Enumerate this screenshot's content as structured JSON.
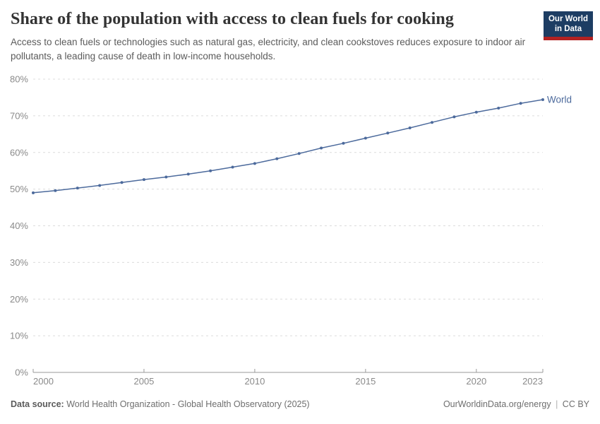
{
  "header": {
    "title": "Share of the population with access to clean fuels for cooking",
    "subtitle": "Access to clean fuels or technologies such as natural gas, electricity, and clean cookstoves reduces exposure to indoor air pollutants, a leading cause of death in low-income households.",
    "logo": {
      "line1": "Our World",
      "line2": "in Data",
      "bg_color": "#1d3d63",
      "stripe_color": "#b22222"
    }
  },
  "chart_data": {
    "type": "line",
    "title": "Share of the population with access to clean fuels for cooking",
    "xlabel": "",
    "ylabel": "",
    "xlim": [
      2000,
      2023
    ],
    "ylim": [
      0,
      80
    ],
    "grid": "horizontal-dashed",
    "legend_position": "end-of-line-label",
    "x_ticks": [
      2000,
      2005,
      2010,
      2015,
      2020,
      2023
    ],
    "y_ticks": [
      0,
      10,
      20,
      30,
      40,
      50,
      60,
      70,
      80
    ],
    "y_tick_suffix": "%",
    "x": [
      2000,
      2001,
      2002,
      2003,
      2004,
      2005,
      2006,
      2007,
      2008,
      2009,
      2010,
      2011,
      2012,
      2013,
      2014,
      2015,
      2016,
      2017,
      2018,
      2019,
      2020,
      2021,
      2022,
      2023
    ],
    "series": [
      {
        "name": "World",
        "color": "#4c6a9c",
        "values": [
          49.0,
          49.6,
          50.3,
          51.0,
          51.8,
          52.6,
          53.3,
          54.1,
          55.0,
          56.0,
          57.0,
          58.3,
          59.7,
          61.2,
          62.5,
          63.9,
          65.3,
          66.7,
          68.2,
          69.7,
          71.0,
          72.1,
          73.4,
          74.4
        ]
      }
    ],
    "colors": {
      "gridline": "#dcdcdc",
      "axis_line": "#999999",
      "tick_label": "#8a8a8a"
    }
  },
  "footer": {
    "datasource_label": "Data source:",
    "datasource_value": "World Health Organization - Global Health Observatory (2025)",
    "link": "OurWorldinData.org/energy",
    "separator": "|",
    "license": "CC BY"
  }
}
